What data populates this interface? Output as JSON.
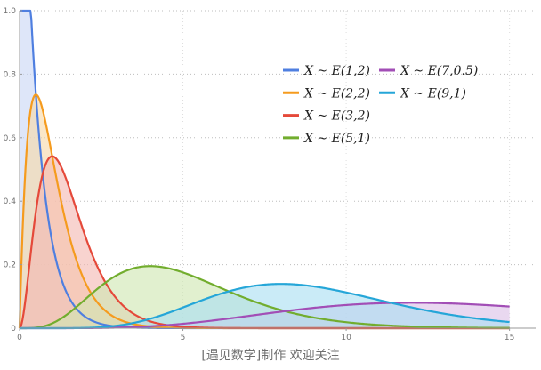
{
  "chart_data": {
    "type": "area",
    "title": "",
    "xlabel": "",
    "ylabel": "",
    "xlim": [
      0,
      15.8
    ],
    "ylim": [
      0,
      1.0
    ],
    "x_ticks": [
      "0",
      "5",
      "10",
      "15"
    ],
    "y_ticks": [
      "0",
      "0.2",
      "0.4",
      "0.6",
      "0.8",
      "1.0"
    ],
    "x_tick_values": [
      0,
      5,
      10,
      15
    ],
    "y_tick_values": [
      0,
      0.2,
      0.4,
      0.6,
      0.8,
      1.0
    ],
    "grid": "horizontal dotted",
    "legend_position": "upper-right",
    "distribution": "Erlang",
    "x_range": [
      0,
      15
    ],
    "series": [
      {
        "name": "X ~ E(1,2)",
        "k": 1,
        "lambda": 2,
        "line_color": "#4f7fe0",
        "fill_color": "#c9d6f5",
        "peak_value": 1.0
      },
      {
        "name": "X ~ E(2,2)",
        "k": 2,
        "lambda": 2,
        "line_color": "#f59b1e",
        "fill_color": "#f7d9a8",
        "peak_value": 0.736
      },
      {
        "name": "X ~ E(3,2)",
        "k": 3,
        "lambda": 2,
        "line_color": "#e5493a",
        "fill_color": "#f3b8b2",
        "peak_value": 0.541
      },
      {
        "name": "X ~ E(5,1)",
        "k": 5,
        "lambda": 1,
        "line_color": "#72ad2e",
        "fill_color": "#cfe6b1",
        "peak_value": 0.195
      },
      {
        "name": "X ~ E(7,0.5)",
        "k": 7,
        "lambda": 0.5,
        "line_color": "#a24eb6",
        "fill_color": "#dcc0e6",
        "peak_value": 0.0803
      },
      {
        "name": "X ~ E(9,1)",
        "k": 9,
        "lambda": 1,
        "line_color": "#25a6d8",
        "fill_color": "#a9dff2",
        "peak_value": 0.1396
      }
    ],
    "legend_columns": [
      [
        "X ~ E(1,2)",
        "X ~ E(2,2)",
        "X ~ E(3,2)",
        "X ~ E(5,1)"
      ],
      [
        "X ~ E(7,0.5)",
        "X ~ E(9,1)"
      ]
    ]
  },
  "caption": "[遇见数学]制作     欢迎关注"
}
